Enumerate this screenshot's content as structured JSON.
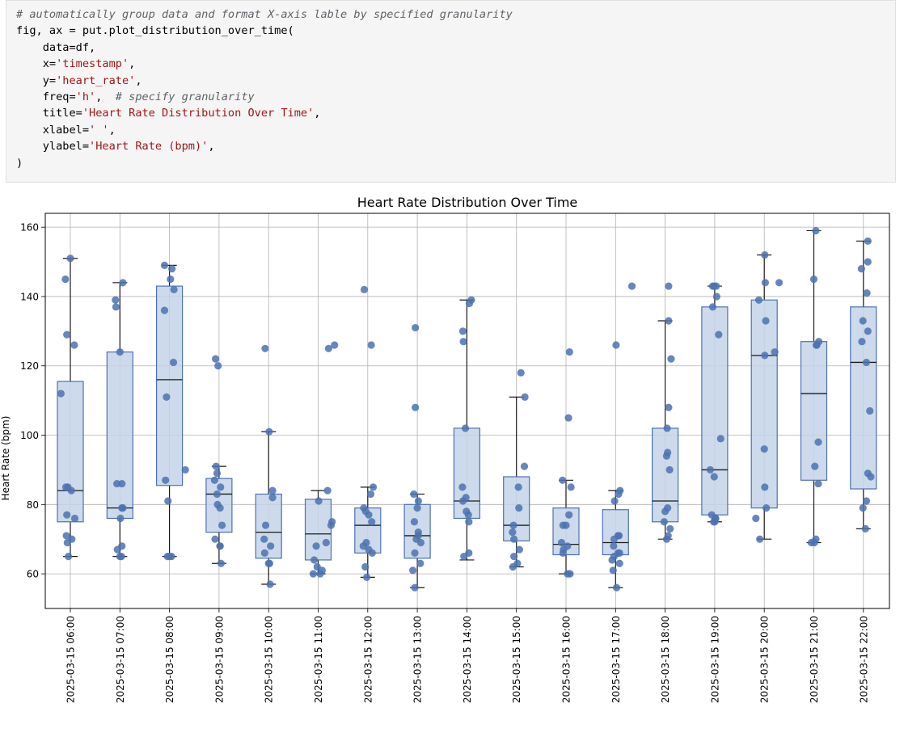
{
  "code_cell": {
    "lines": [
      "# automatically group data and format X-axis lable by specified granularity",
      "fig, ax = put.plot_distribution_over_time(",
      "    data=df,",
      "    x='timestamp',",
      "    y='heart_rate',",
      "    freq='h',  # specify granularity",
      "    title='Heart Rate Distribution Over Time',",
      "    xlabel=' ',",
      "    ylabel='Heart Rate (bpm)',",
      ")"
    ]
  },
  "chart_data": {
    "type": "box",
    "title": "Heart Rate Distribution Over Time",
    "xlabel": " ",
    "ylabel": "Heart Rate (bpm)",
    "ylim": [
      50,
      164
    ],
    "yticks": [
      60,
      80,
      100,
      120,
      140,
      160
    ],
    "grid": true,
    "colors": {
      "box_fill": "#c3d4e8",
      "box_edge": "#4c72b0",
      "point": "#4c72b0",
      "median": "#1a1a1a",
      "whisker": "#1a1a1a",
      "grid": "#b0b0b0"
    },
    "categories": [
      "2025-03-15 06:00",
      "2025-03-15 07:00",
      "2025-03-15 08:00",
      "2025-03-15 09:00",
      "2025-03-15 10:00",
      "2025-03-15 11:00",
      "2025-03-15 12:00",
      "2025-03-15 13:00",
      "2025-03-15 14:00",
      "2025-03-15 15:00",
      "2025-03-15 16:00",
      "2025-03-15 17:00",
      "2025-03-15 18:00",
      "2025-03-15 19:00",
      "2025-03-15 20:00",
      "2025-03-15 21:00",
      "2025-03-15 22:00"
    ],
    "boxes": [
      {
        "whislo": 65,
        "q1": 75,
        "med": 84,
        "q3": 115.5,
        "whishi": 151
      },
      {
        "whislo": 65,
        "q1": 76,
        "med": 79,
        "q3": 124,
        "whishi": 144
      },
      {
        "whislo": 65,
        "q1": 85.5,
        "med": 116,
        "q3": 143,
        "whishi": 149
      },
      {
        "whislo": 63,
        "q1": 72,
        "med": 83,
        "q3": 87.5,
        "whishi": 91
      },
      {
        "whislo": 57,
        "q1": 64.5,
        "med": 72,
        "q3": 83,
        "whishi": 101
      },
      {
        "whislo": 60,
        "q1": 64,
        "med": 71.5,
        "q3": 81.5,
        "whishi": 84
      },
      {
        "whislo": 59,
        "q1": 66,
        "med": 74,
        "q3": 79,
        "whishi": 85
      },
      {
        "whislo": 56,
        "q1": 64.5,
        "med": 71,
        "q3": 80,
        "whishi": 83
      },
      {
        "whislo": 64,
        "q1": 76,
        "med": 81,
        "q3": 102,
        "whishi": 139
      },
      {
        "whislo": 62,
        "q1": 69.5,
        "med": 74,
        "q3": 88,
        "whishi": 111
      },
      {
        "whislo": 60,
        "q1": 65.5,
        "med": 68.5,
        "q3": 79,
        "whishi": 87
      },
      {
        "whislo": 56,
        "q1": 65.5,
        "med": 69,
        "q3": 78.5,
        "whishi": 84
      },
      {
        "whislo": 70,
        "q1": 75,
        "med": 81,
        "q3": 102,
        "whishi": 133
      },
      {
        "whislo": 75,
        "q1": 77,
        "med": 90,
        "q3": 137,
        "whishi": 143
      },
      {
        "whislo": 70,
        "q1": 79,
        "med": 123,
        "q3": 139,
        "whishi": 152
      },
      {
        "whislo": 69,
        "q1": 87,
        "med": 112,
        "q3": 127,
        "whishi": 159
      },
      {
        "whislo": 73,
        "q1": 84.5,
        "med": 121,
        "q3": 137,
        "whishi": 156
      }
    ],
    "points": [
      {
        "x": [
          -0.19,
          -0.1,
          -0.07,
          0.0,
          0.08,
          -0.05,
          0.02,
          -0.09,
          -0.07,
          -0.08,
          0.03,
          -0.06,
          0.09,
          -0.04
        ],
        "y": [
          112,
          145,
          129,
          151,
          126,
          85,
          84,
          85,
          77,
          71,
          70,
          69,
          76,
          65
        ]
      },
      {
        "x": [
          0.06,
          -0.09,
          -0.08,
          0.0,
          0.04,
          -0.06,
          0.04,
          0.06,
          0.01,
          -0.05,
          0.04,
          0.03,
          0.0
        ],
        "y": [
          144,
          139,
          137,
          124,
          86,
          86,
          79,
          79,
          76,
          67,
          68,
          65,
          65
        ]
      },
      {
        "x": [
          -0.1,
          0.05,
          0.02,
          -0.1,
          0.09,
          -0.06,
          0.08,
          0.32,
          -0.08,
          -0.03,
          0.04,
          -0.04,
          0.0
        ],
        "y": [
          149,
          148,
          145,
          136,
          142,
          111,
          121,
          90,
          87,
          81,
          65,
          65,
          65
        ]
      },
      {
        "x": [
          -0.07,
          -0.02,
          -0.06,
          -0.09,
          0.03,
          -0.04,
          -0.03,
          0.02,
          0.06,
          -0.08,
          0.02,
          0.02,
          0.04,
          -0.04
        ],
        "y": [
          122,
          120,
          91,
          87,
          85,
          83,
          80,
          79,
          74,
          70,
          68,
          68,
          63,
          89
        ]
      },
      {
        "x": [
          -0.07,
          0.01,
          0.08,
          0.08,
          -0.06,
          -0.09,
          0.04,
          -0.08,
          0.0,
          0.02,
          0.03
        ],
        "y": [
          125,
          101,
          84,
          82,
          74,
          70,
          68,
          66,
          63,
          63,
          57
        ]
      },
      {
        "x": [
          0.33,
          0.21,
          0.28,
          0.26,
          0.19,
          0.01,
          0.16,
          -0.04,
          -0.08,
          -0.02,
          0.08,
          -0.1,
          0.04
        ],
        "y": [
          126,
          125,
          75,
          74,
          84,
          81,
          69,
          68,
          64,
          62,
          61,
          60,
          60
        ]
      },
      {
        "x": [
          -0.07,
          0.07,
          0.11,
          0.06,
          -0.08,
          -0.04,
          0.02,
          0.08,
          -0.03,
          -0.09,
          0.02,
          0.09,
          -0.05,
          -0.02
        ],
        "y": [
          142,
          126,
          85,
          83,
          79,
          78,
          77,
          75,
          69,
          68,
          67,
          66,
          62,
          59
        ]
      },
      {
        "x": [
          -0.04,
          -0.04,
          -0.07,
          0.02,
          0.0,
          -0.06,
          0.02,
          -0.02,
          0.07,
          -0.05,
          0.06,
          -0.09,
          -0.05,
          0.02
        ],
        "y": [
          131,
          108,
          83,
          81,
          79,
          75,
          72,
          70,
          69,
          66,
          63,
          61,
          56,
          71
        ]
      },
      {
        "x": [
          0.09,
          0.05,
          -0.08,
          -0.07,
          -0.03,
          -0.09,
          -0.02,
          -0.08,
          -0.01,
          0.03,
          0.04,
          0.04,
          -0.06
        ],
        "y": [
          139,
          138,
          130,
          127,
          102,
          85,
          82,
          81,
          78,
          77,
          75,
          66,
          65
        ]
      },
      {
        "x": [
          0.09,
          0.17,
          0.16,
          0.04,
          0.05,
          -0.06,
          -0.08,
          -0.05,
          0.06,
          0.02,
          -0.07,
          -0.05
        ],
        "y": [
          118,
          111,
          91,
          85,
          79,
          74,
          72,
          70,
          67,
          63,
          62,
          65
        ]
      },
      {
        "x": [
          0.07,
          0.05,
          -0.07,
          0.1,
          0.06,
          0.0,
          -0.06,
          -0.09,
          0.03,
          -0.05,
          -0.06,
          0.08,
          0.03
        ],
        "y": [
          124,
          105,
          87,
          85,
          77,
          74,
          74,
          69,
          68,
          67,
          66,
          60,
          60
        ]
      },
      {
        "x": [
          0.33,
          0.01,
          0.09,
          0.06,
          -0.02,
          0.07,
          0.05,
          -0.03,
          -0.04,
          0.08,
          0.05,
          -0.03,
          -0.07,
          -0.05,
          0.08,
          0.02
        ],
        "y": [
          143,
          126,
          84,
          83,
          81,
          71,
          71,
          70,
          68,
          66,
          66,
          65,
          64,
          61,
          63,
          56
        ]
      },
      {
        "x": [
          0.07,
          0.07,
          0.12,
          0.07,
          0.04,
          0.05,
          0.03,
          0.09,
          0.05,
          0.0,
          -0.02,
          0.1,
          0.06,
          0.03
        ],
        "y": [
          143,
          133,
          122,
          108,
          102,
          95,
          94,
          90,
          79,
          78,
          75,
          73,
          71,
          70
        ]
      },
      {
        "x": [
          -0.04,
          -0.01,
          0.04,
          -0.04,
          0.08,
          0.12,
          -0.09,
          -0.01,
          -0.06,
          0.02,
          -0.02,
          0.0,
          0.01,
          0.03
        ],
        "y": [
          143,
          143,
          140,
          137,
          129,
          99,
          90,
          88,
          77,
          76,
          75,
          75,
          76,
          143
        ]
      },
      {
        "x": [
          0.01,
          0.02,
          0.3,
          0.21,
          0.03,
          -0.11,
          0.01,
          0.0,
          0.01,
          -0.17,
          0.04,
          -0.09
        ],
        "y": [
          152,
          144,
          144,
          124,
          133,
          139,
          123,
          96,
          85,
          76,
          79,
          70
        ]
      },
      {
        "x": [
          0.04,
          -0.0,
          0.1,
          0.05,
          0.09,
          0.02,
          0.09,
          -0.05,
          0.04,
          0.06,
          0.01
        ],
        "y": [
          159,
          145,
          127,
          126,
          98,
          91,
          86,
          69,
          70,
          126,
          69
        ]
      },
      {
        "x": [
          0.09,
          -0.04,
          0.09,
          0.07,
          -0.01,
          0.09,
          -0.03,
          0.06,
          0.13,
          0.09,
          0.15,
          -0.01,
          0.06,
          0.04
        ],
        "y": [
          156,
          148,
          150,
          141,
          133,
          130,
          127,
          121,
          107,
          89,
          88,
          79,
          81,
          73
        ]
      }
    ]
  }
}
